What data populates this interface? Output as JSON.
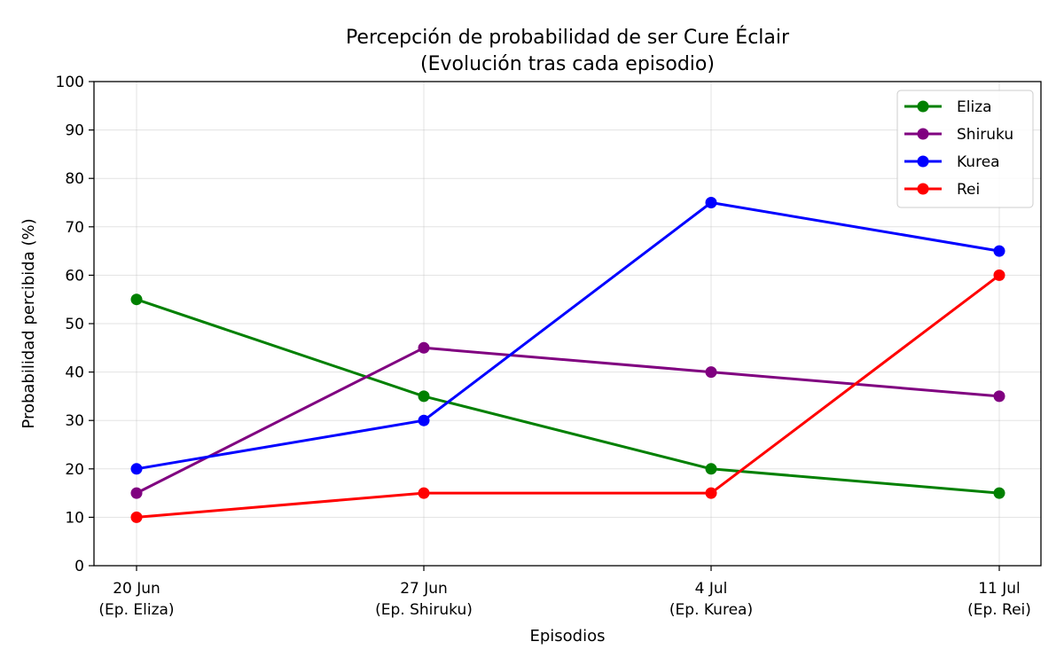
{
  "chart_data": {
    "type": "line",
    "title": "Percepción de probabilidad de ser Cure Éclair",
    "subtitle": "(Evolución tras cada episodio)",
    "xlabel": "Episodios",
    "ylabel": "Probabilidad percibida (%)",
    "categories": [
      {
        "date": "20 Jun",
        "episode": "(Ep. Eliza)"
      },
      {
        "date": "27 Jun",
        "episode": "(Ep. Shiruku)"
      },
      {
        "date": "4 Jul",
        "episode": "(Ep. Kurea)"
      },
      {
        "date": "11 Jul",
        "episode": "(Ep. Rei)"
      }
    ],
    "ylim": [
      0,
      100
    ],
    "yticks": [
      0,
      10,
      20,
      30,
      40,
      50,
      60,
      70,
      80,
      90,
      100
    ],
    "grid": true,
    "legend_position": "top-right",
    "series": [
      {
        "name": "Eliza",
        "color": "#008000",
        "values": [
          55,
          35,
          20,
          15
        ]
      },
      {
        "name": "Shiruku",
        "color": "#800080",
        "values": [
          15,
          45,
          40,
          35
        ]
      },
      {
        "name": "Kurea",
        "color": "#0000ff",
        "values": [
          20,
          30,
          75,
          65
        ]
      },
      {
        "name": "Rei",
        "color": "#ff0000",
        "values": [
          10,
          15,
          15,
          60
        ]
      }
    ]
  }
}
